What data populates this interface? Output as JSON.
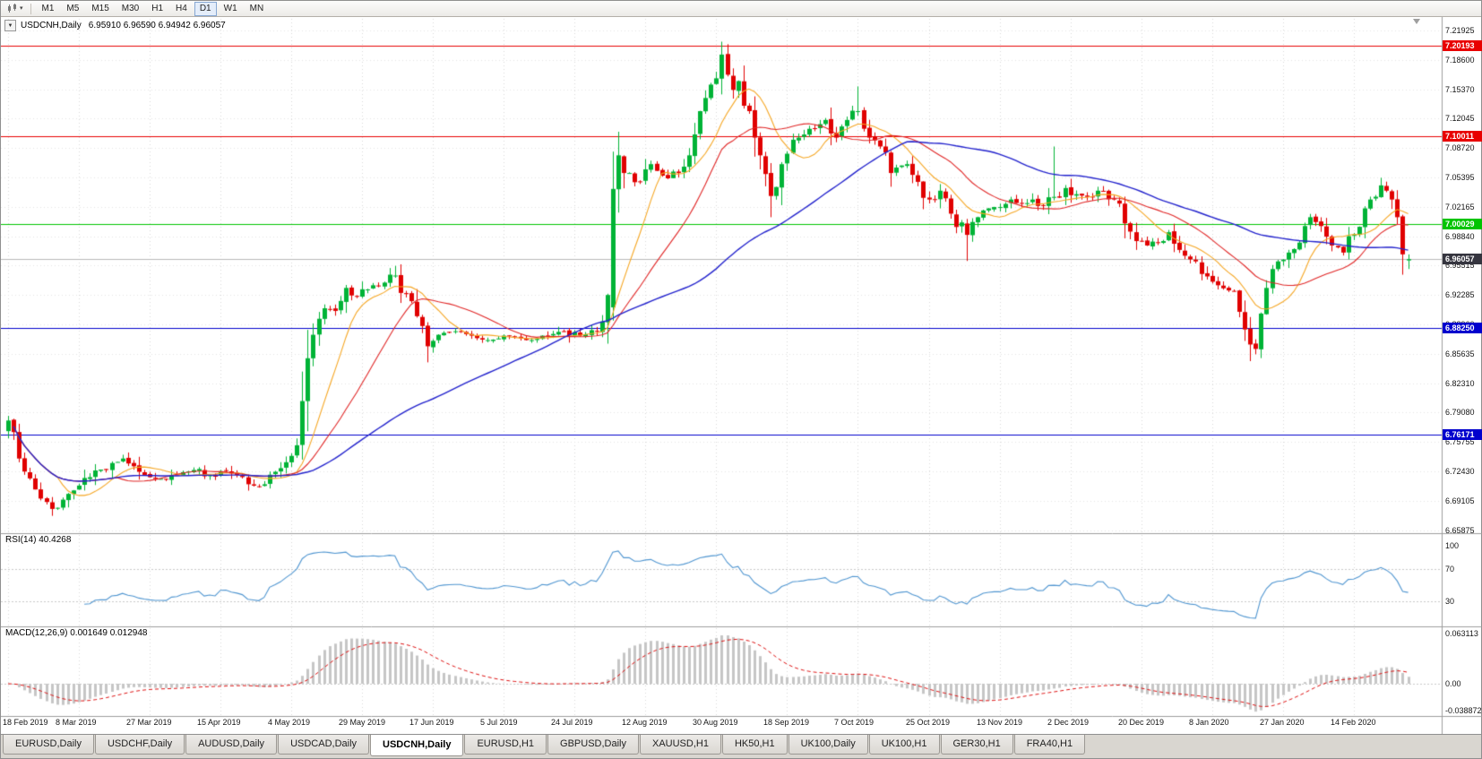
{
  "icons": {
    "one_click_caret": "▼",
    "dropdown_caret": "▾"
  },
  "toolbar": {
    "timeframes": [
      {
        "label": "M1",
        "active": false
      },
      {
        "label": "M5",
        "active": false
      },
      {
        "label": "M15",
        "active": false
      },
      {
        "label": "M30",
        "active": false
      },
      {
        "label": "H1",
        "active": false
      },
      {
        "label": "H4",
        "active": false
      },
      {
        "label": "D1",
        "active": true
      },
      {
        "label": "W1",
        "active": false
      },
      {
        "label": "MN",
        "active": false
      }
    ]
  },
  "chart": {
    "symbol_label": "USDCNH,Daily",
    "ohlc_text": "6.95910 6.96590 6.94942 6.96057",
    "price_ticks": [
      "7.21925",
      "7.18600",
      "7.15370",
      "7.12045",
      "7.08720",
      "7.05395",
      "7.02165",
      "6.98840",
      "6.95515",
      "6.92285",
      "6.88960",
      "6.85635",
      "6.82310",
      "6.79080",
      "6.75755",
      "6.72430",
      "6.69105",
      "6.65875"
    ],
    "date_labels": [
      "18 Feb 2019",
      "8 Mar 2019",
      "27 Mar 2019",
      "15 Apr 2019",
      "4 May 2019",
      "29 May 2019",
      "17 Jun 2019",
      "5 Jul 2019",
      "24 Jul 2019",
      "12 Aug 2019",
      "30 Aug 2019",
      "18 Sep 2019",
      "7 Oct 2019",
      "25 Oct 2019",
      "13 Nov 2019",
      "2 Dec 2019",
      "20 Dec 2019",
      "8 Jan 2020",
      "27 Jan 2020",
      "14 Feb 2020"
    ],
    "hlines": [
      {
        "value": 7.20193,
        "label": "7.20193",
        "color": "#e80000"
      },
      {
        "value": 7.10011,
        "label": "7.10011",
        "color": "#e80000"
      },
      {
        "value": 7.00029,
        "label": "7.00029",
        "color": "#00c400"
      },
      {
        "value": 6.8825,
        "label": "6.88250",
        "color": "#0000cd"
      },
      {
        "value": 6.76171,
        "label": "6.76171",
        "color": "#0000cd"
      }
    ],
    "current_price": {
      "value": 6.96057,
      "label": "6.96057",
      "tag_color": "#35353f",
      "line_color": "#b8b8b8"
    },
    "colors": {
      "up": "#00b336",
      "down": "#e00000",
      "rsi": "#4f95d0",
      "macd_hist": "#c6c6c6",
      "macd_signal": "#dd1111"
    }
  },
  "rsi_panel": {
    "label": "RSI(14) 40.4268",
    "period": 14,
    "value": 40.4268,
    "levels": [
      "100",
      "70",
      "30"
    ]
  },
  "macd_panel": {
    "label": "MACD(12,26,9) 0.001649 0.012948",
    "fast": 12,
    "slow": 26,
    "signal": 9,
    "main_value": 0.001649,
    "signal_value": 0.012948,
    "levels": [
      "0.063113",
      "0.00",
      "-0.038872"
    ]
  },
  "tabs": [
    {
      "label": "EURUSD,Daily",
      "active": false
    },
    {
      "label": "USDCHF,Daily",
      "active": false
    },
    {
      "label": "AUDUSD,Daily",
      "active": false
    },
    {
      "label": "USDCAD,Daily",
      "active": false
    },
    {
      "label": "USDCNH,Daily",
      "active": true
    },
    {
      "label": "EURUSD,H1",
      "active": false
    },
    {
      "label": "GBPUSD,Daily",
      "active": false
    },
    {
      "label": "XAUUSD,H1",
      "active": false
    },
    {
      "label": "HK50,H1",
      "active": false
    },
    {
      "label": "UK100,Daily",
      "active": false
    },
    {
      "label": "UK100,H1",
      "active": false
    },
    {
      "label": "GER30,H1",
      "active": false
    },
    {
      "label": "FRA40,H1",
      "active": false
    }
  ],
  "chart_data": {
    "type": "candlestick",
    "symbol": "USDCNH",
    "timeframe": "Daily",
    "bar_count": 258,
    "bars_per_label": 13,
    "price_axis_range": [
      6.65875,
      7.21925
    ],
    "last_bar": {
      "open": 6.9591,
      "high": 6.9659,
      "low": 6.94942,
      "close": 6.96057
    },
    "close_anchors": [
      [
        0,
        6.778
      ],
      [
        2,
        6.735
      ],
      [
        5,
        6.7
      ],
      [
        8,
        6.678
      ],
      [
        11,
        6.695
      ],
      [
        14,
        6.713
      ],
      [
        18,
        6.722
      ],
      [
        21,
        6.735
      ],
      [
        24,
        6.72
      ],
      [
        27,
        6.712
      ],
      [
        30,
        6.716
      ],
      [
        34,
        6.722
      ],
      [
        37,
        6.716
      ],
      [
        40,
        6.721
      ],
      [
        43,
        6.714
      ],
      [
        46,
        6.703
      ],
      [
        49,
        6.72
      ],
      [
        52,
        6.738
      ],
      [
        53,
        6.75
      ],
      [
        54,
        6.8
      ],
      [
        56,
        6.875
      ],
      [
        58,
        6.905
      ],
      [
        60,
        6.902
      ],
      [
        62,
        6.928
      ],
      [
        64,
        6.918
      ],
      [
        67,
        6.931
      ],
      [
        69,
        6.934
      ],
      [
        71,
        6.942
      ],
      [
        73,
        6.921
      ],
      [
        75,
        6.896
      ],
      [
        77,
        6.862
      ],
      [
        79,
        6.875
      ],
      [
        82,
        6.879
      ],
      [
        85,
        6.874
      ],
      [
        88,
        6.869
      ],
      [
        91,
        6.874
      ],
      [
        95,
        6.869
      ],
      [
        98,
        6.874
      ],
      [
        102,
        6.879
      ],
      [
        105,
        6.874
      ],
      [
        108,
        6.879
      ],
      [
        109,
        6.89
      ],
      [
        110,
        6.92
      ],
      [
        111,
        7.04
      ],
      [
        112,
        7.078
      ],
      [
        113,
        7.058
      ],
      [
        116,
        7.048
      ],
      [
        118,
        7.068
      ],
      [
        121,
        7.052
      ],
      [
        123,
        7.058
      ],
      [
        125,
        7.078
      ],
      [
        127,
        7.128
      ],
      [
        129,
        7.158
      ],
      [
        131,
        7.192
      ],
      [
        133,
        7.152
      ],
      [
        134,
        7.162
      ],
      [
        136,
        7.128
      ],
      [
        138,
        7.078
      ],
      [
        140,
        7.032
      ],
      [
        142,
        7.068
      ],
      [
        145,
        7.098
      ],
      [
        147,
        7.108
      ],
      [
        150,
        7.118
      ],
      [
        152,
        7.098
      ],
      [
        154,
        7.118
      ],
      [
        156,
        7.128
      ],
      [
        158,
        7.098
      ],
      [
        160,
        7.088
      ],
      [
        162,
        7.058
      ],
      [
        165,
        7.068
      ],
      [
        167,
        7.048
      ],
      [
        169,
        7.028
      ],
      [
        171,
        7.038
      ],
      [
        173,
        7.012
      ],
      [
        176,
        6.988
      ],
      [
        178,
        7.008
      ],
      [
        180,
        7.018
      ],
      [
        184,
        7.028
      ],
      [
        186,
        7.024
      ],
      [
        188,
        7.028
      ],
      [
        190,
        7.021
      ],
      [
        192,
        7.031
      ],
      [
        194,
        7.041
      ],
      [
        196,
        7.034
      ],
      [
        198,
        7.031
      ],
      [
        200,
        7.038
      ],
      [
        203,
        7.028
      ],
      [
        205,
        7.001
      ],
      [
        207,
        6.981
      ],
      [
        209,
        6.976
      ],
      [
        212,
        6.981
      ],
      [
        213,
        6.991
      ],
      [
        215,
        6.971
      ],
      [
        218,
        6.958
      ],
      [
        220,
        6.941
      ],
      [
        222,
        6.931
      ],
      [
        225,
        6.924
      ],
      [
        226,
        6.901
      ],
      [
        227,
        6.881
      ],
      [
        228,
        6.864
      ],
      [
        229,
        6.859
      ],
      [
        230,
        6.899
      ],
      [
        231,
        6.928
      ],
      [
        233,
        6.958
      ],
      [
        235,
        6.968
      ],
      [
        238,
        6.998
      ],
      [
        239,
        7.008
      ],
      [
        241,
        6.998
      ],
      [
        243,
        6.976
      ],
      [
        245,
        6.968
      ],
      [
        247,
        6.988
      ],
      [
        249,
        7.018
      ],
      [
        250,
        7.028
      ],
      [
        252,
        7.044
      ],
      [
        253,
        7.038
      ],
      [
        254,
        7.028
      ],
      [
        255,
        7.008
      ],
      [
        256,
        6.966
      ],
      [
        257,
        6.96057
      ]
    ],
    "forced_bars": {
      "71": {
        "h": 6.953
      },
      "77": {
        "l": 6.8438
      },
      "111": {
        "o": 6.906,
        "l": 6.891,
        "h": 7.049
      },
      "131": {
        "h": 7.1963
      },
      "140": {
        "l": 7.008
      },
      "156": {
        "h": 7.156
      },
      "176": {
        "l": 6.9585
      },
      "192": {
        "h": 7.088
      },
      "228": {
        "l": 6.8452
      },
      "252": {
        "h": 7.052
      }
    },
    "overlays": [
      {
        "name": "ma-fast",
        "period": 10,
        "color": "#f5a623",
        "width": 1.1
      },
      {
        "name": "ma-mid",
        "period": 21,
        "color": "#e02626",
        "width": 1.1
      },
      {
        "name": "ma-slow",
        "period": 55,
        "color": "#2222cc",
        "width": 1.4
      }
    ]
  }
}
